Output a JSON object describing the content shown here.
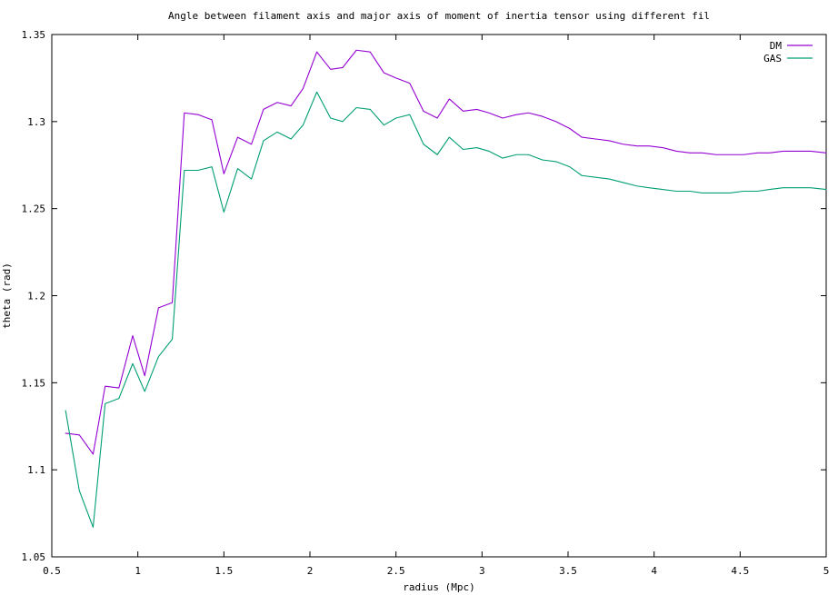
{
  "chart_data": {
    "type": "line",
    "title": "Angle between filament axis and major axis of moment of inertia tensor using different fil",
    "xlabel": "radius (Mpc)",
    "ylabel": "theta (rad)",
    "xlim": [
      0.5,
      5
    ],
    "ylim": [
      1.05,
      1.35
    ],
    "x_ticks": [
      0.5,
      1,
      1.5,
      2,
      2.5,
      3,
      3.5,
      4,
      4.5,
      5
    ],
    "y_ticks": [
      1.05,
      1.1,
      1.15,
      1.2,
      1.25,
      1.3,
      1.35
    ],
    "x_tick_labels": [
      "0.5",
      "1",
      "1.5",
      "2",
      "2.5",
      "3",
      "3.5",
      "4",
      "4.5",
      "5"
    ],
    "y_tick_labels": [
      "1.05",
      "1.1",
      "1.15",
      "1.2",
      "1.25",
      "1.3",
      "1.35"
    ],
    "grid": false,
    "legend_position": "top-right",
    "series": [
      {
        "name": "DM",
        "color": "#9400d3",
        "x": [
          0.58,
          0.66,
          0.74,
          0.81,
          0.89,
          0.97,
          1.04,
          1.12,
          1.2,
          1.27,
          1.35,
          1.43,
          1.5,
          1.58,
          1.66,
          1.73,
          1.81,
          1.89,
          1.96,
          2.04,
          2.12,
          2.19,
          2.27,
          2.35,
          2.43,
          2.5,
          2.58,
          2.66,
          2.74,
          2.81,
          2.89,
          2.97,
          3.04,
          3.12,
          3.2,
          3.27,
          3.35,
          3.43,
          3.51,
          3.58,
          3.66,
          3.74,
          3.82,
          3.9,
          3.97,
          4.05,
          4.13,
          4.21,
          4.28,
          4.36,
          4.44,
          4.52,
          4.6,
          4.67,
          4.75,
          4.83,
          4.91,
          5.0
        ],
        "y": [
          1.121,
          1.12,
          1.109,
          1.148,
          1.147,
          1.177,
          1.154,
          1.193,
          1.196,
          1.305,
          1.304,
          1.301,
          1.27,
          1.291,
          1.287,
          1.307,
          1.311,
          1.309,
          1.319,
          1.34,
          1.33,
          1.331,
          1.341,
          1.34,
          1.328,
          1.325,
          1.322,
          1.306,
          1.302,
          1.313,
          1.306,
          1.307,
          1.305,
          1.302,
          1.304,
          1.305,
          1.303,
          1.3,
          1.296,
          1.291,
          1.29,
          1.289,
          1.287,
          1.286,
          1.286,
          1.285,
          1.283,
          1.282,
          1.282,
          1.281,
          1.281,
          1.281,
          1.282,
          1.282,
          1.283,
          1.283,
          1.283,
          1.282
        ]
      },
      {
        "name": "GAS",
        "color": "#009e73",
        "x": [
          0.58,
          0.66,
          0.74,
          0.81,
          0.89,
          0.97,
          1.04,
          1.12,
          1.2,
          1.27,
          1.35,
          1.43,
          1.5,
          1.58,
          1.66,
          1.73,
          1.81,
          1.89,
          1.96,
          2.04,
          2.12,
          2.19,
          2.27,
          2.35,
          2.43,
          2.5,
          2.58,
          2.66,
          2.74,
          2.81,
          2.89,
          2.97,
          3.04,
          3.12,
          3.2,
          3.27,
          3.35,
          3.43,
          3.51,
          3.58,
          3.66,
          3.74,
          3.82,
          3.9,
          3.97,
          4.05,
          4.13,
          4.21,
          4.28,
          4.36,
          4.44,
          4.52,
          4.6,
          4.67,
          4.75,
          4.83,
          4.91,
          5.0
        ],
        "y": [
          1.134,
          1.088,
          1.067,
          1.138,
          1.141,
          1.161,
          1.145,
          1.165,
          1.175,
          1.272,
          1.272,
          1.274,
          1.248,
          1.273,
          1.267,
          1.289,
          1.294,
          1.29,
          1.298,
          1.317,
          1.302,
          1.3,
          1.308,
          1.307,
          1.298,
          1.302,
          1.304,
          1.287,
          1.281,
          1.291,
          1.284,
          1.285,
          1.283,
          1.279,
          1.281,
          1.281,
          1.278,
          1.277,
          1.274,
          1.269,
          1.268,
          1.267,
          1.265,
          1.263,
          1.262,
          1.261,
          1.26,
          1.26,
          1.259,
          1.259,
          1.259,
          1.26,
          1.26,
          1.261,
          1.262,
          1.262,
          1.262,
          1.261
        ]
      }
    ]
  }
}
